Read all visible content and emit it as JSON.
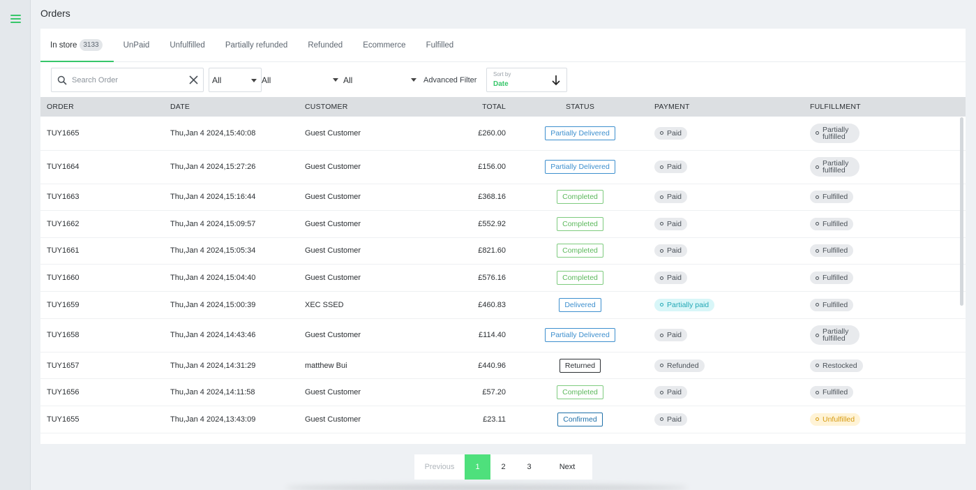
{
  "page": {
    "title": "Orders"
  },
  "tabs": [
    {
      "label": "In store",
      "count": "3133"
    },
    {
      "label": "UnPaid"
    },
    {
      "label": "Unfulfilled"
    },
    {
      "label": "Partially refunded"
    },
    {
      "label": "Refunded"
    },
    {
      "label": "Ecommerce"
    },
    {
      "label": "Fulfilled"
    }
  ],
  "filters": {
    "search_placeholder": "Search Order",
    "select1": "All",
    "select2": "All",
    "select3": "All",
    "advanced_label": "Advanced Filter",
    "sort_label": "Sort by",
    "sort_value": "Date"
  },
  "table": {
    "headers": [
      "ORDER",
      "DATE",
      "CUSTOMER",
      "TOTAL",
      "STATUS",
      "PAYMENT",
      "FULFILLMENT"
    ],
    "rows": [
      {
        "order": "TUY1665",
        "date": "Thu,Jan 4 2024,15:40:08",
        "customer": "Guest Customer",
        "total": "£260.00",
        "status": "Partially Delivered",
        "status_type": "pdel",
        "payment": "Paid",
        "payment_type": "grey",
        "fulfillment": "Partially\nfulfilled",
        "fulfillment_type": "multi"
      },
      {
        "order": "TUY1664",
        "date": "Thu,Jan 4 2024,15:27:26",
        "customer": "Guest Customer",
        "total": "£156.00",
        "status": "Partially Delivered",
        "status_type": "pdel",
        "payment": "Paid",
        "payment_type": "grey",
        "fulfillment": "Partially\nfulfilled",
        "fulfillment_type": "multi"
      },
      {
        "order": "TUY1663",
        "date": "Thu,Jan 4 2024,15:16:44",
        "customer": "Guest Customer",
        "total": "£368.16",
        "status": "Completed",
        "status_type": "comp",
        "payment": "Paid",
        "payment_type": "grey",
        "fulfillment": "Fulfilled",
        "fulfillment_type": "grey"
      },
      {
        "order": "TUY1662",
        "date": "Thu,Jan 4 2024,15:09:57",
        "customer": "Guest Customer",
        "total": "£552.92",
        "status": "Completed",
        "status_type": "comp",
        "payment": "Paid",
        "payment_type": "grey",
        "fulfillment": "Fulfilled",
        "fulfillment_type": "grey"
      },
      {
        "order": "TUY1661",
        "date": "Thu,Jan 4 2024,15:05:34",
        "customer": "Guest Customer",
        "total": "£821.60",
        "status": "Completed",
        "status_type": "comp",
        "payment": "Paid",
        "payment_type": "grey",
        "fulfillment": "Fulfilled",
        "fulfillment_type": "grey"
      },
      {
        "order": "TUY1660",
        "date": "Thu,Jan 4 2024,15:04:40",
        "customer": "Guest Customer",
        "total": "£576.16",
        "status": "Completed",
        "status_type": "comp",
        "payment": "Paid",
        "payment_type": "grey",
        "fulfillment": "Fulfilled",
        "fulfillment_type": "grey"
      },
      {
        "order": "TUY1659",
        "date": "Thu,Jan 4 2024,15:00:39",
        "customer": "XEC SSED",
        "total": "£460.83",
        "status": "Delivered",
        "status_type": "del",
        "payment": "Partially paid",
        "payment_type": "teal",
        "fulfillment": "Fulfilled",
        "fulfillment_type": "grey"
      },
      {
        "order": "TUY1658",
        "date": "Thu,Jan 4 2024,14:43:46",
        "customer": "Guest Customer",
        "total": "£114.40",
        "status": "Partially Delivered",
        "status_type": "pdel",
        "payment": "Paid",
        "payment_type": "grey",
        "fulfillment": "Partially\nfulfilled",
        "fulfillment_type": "multi"
      },
      {
        "order": "TUY1657",
        "date": "Thu,Jan 4 2024,14:31:29",
        "customer": "matthew Bui",
        "total": "£440.96",
        "status": "Returned",
        "status_type": "ret",
        "payment": "Refunded",
        "payment_type": "grey",
        "fulfillment": "Restocked",
        "fulfillment_type": "grey"
      },
      {
        "order": "TUY1656",
        "date": "Thu,Jan 4 2024,14:11:58",
        "customer": "Guest Customer",
        "total": "£57.20",
        "status": "Completed",
        "status_type": "comp",
        "payment": "Paid",
        "payment_type": "grey",
        "fulfillment": "Fulfilled",
        "fulfillment_type": "grey"
      },
      {
        "order": "TUY1655",
        "date": "Thu,Jan 4 2024,13:43:09",
        "customer": "Guest Customer",
        "total": "£23.11",
        "status": "Confirmed",
        "status_type": "conf",
        "payment": "Paid",
        "payment_type": "grey",
        "fulfillment": "Unfulfilled",
        "fulfillment_type": "yellow"
      }
    ]
  },
  "pagination": {
    "prev": "Previous",
    "pages": [
      "1",
      "2",
      "3"
    ],
    "current": "1",
    "next": "Next"
  },
  "colors": {
    "accent": "#37c66a",
    "pager_active": "#4ee07c",
    "header_bg": "#dcdfe2"
  }
}
